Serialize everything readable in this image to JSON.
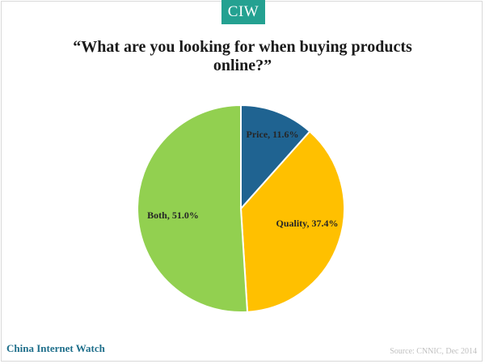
{
  "header": {
    "logo_text": "CIW"
  },
  "chart_data": {
    "type": "pie",
    "title": "“What are you looking for when buying products online?”",
    "slices": [
      {
        "label": "Price",
        "value": 11.6,
        "display": "Price, 11.6%",
        "color": "#1f6391"
      },
      {
        "label": "Quality",
        "value": 37.4,
        "display": "Quality, 37.4%",
        "color": "#ffc000"
      },
      {
        "label": "Both",
        "value": 51.0,
        "display": "Both, 51.0%",
        "color": "#92d050"
      }
    ],
    "start": "12 o'clock",
    "direction": "clockwise",
    "legend": "none",
    "labels": "on slices"
  },
  "footer": {
    "brand": "China Internet Watch",
    "source": "Source: CNNIC, Dec 2014"
  }
}
